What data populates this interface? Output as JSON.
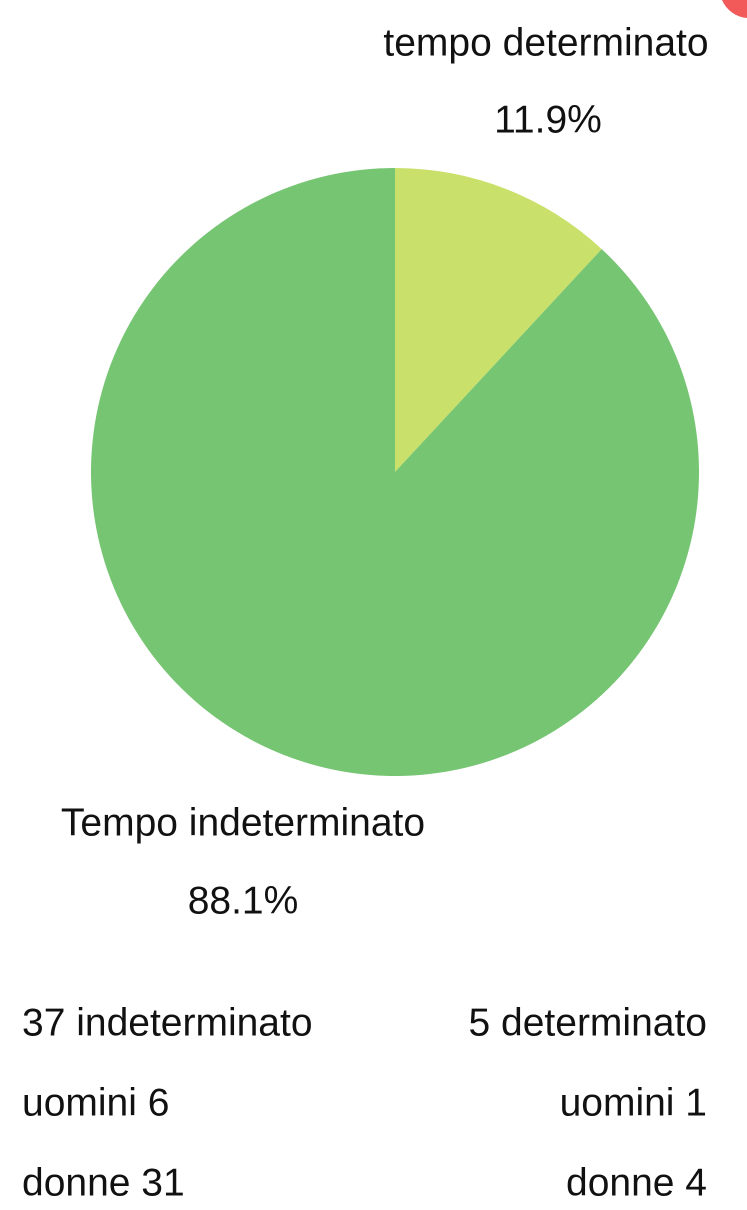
{
  "chart_data": {
    "type": "pie",
    "categories": [
      "tempo determinato",
      "Tempo indeterminato"
    ],
    "values": [
      11.9,
      88.1
    ],
    "value_labels": [
      "11.9%",
      "88.1%"
    ],
    "colors": [
      "#c9e06a",
      "#76c572"
    ]
  },
  "summary": {
    "left": [
      "37 indeterminato",
      "uomini 6",
      "donne 31"
    ],
    "right": [
      "5 determinato",
      "uomini 1",
      "donne 4"
    ]
  }
}
